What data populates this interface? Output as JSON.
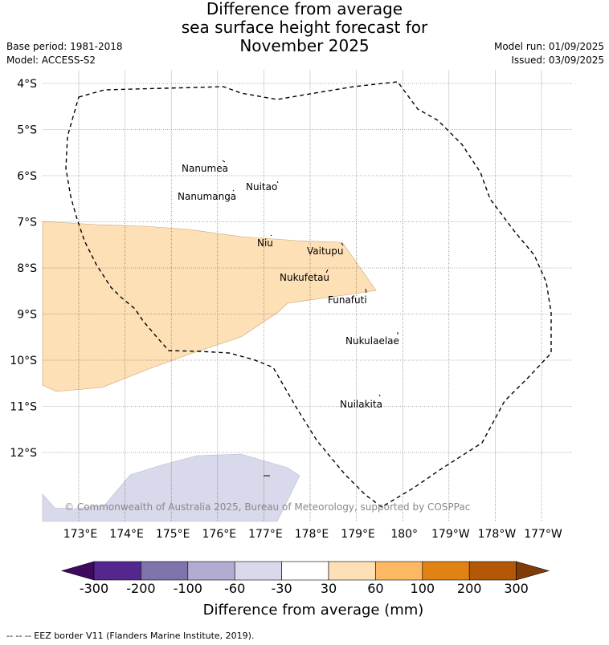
{
  "title": {
    "line1": "Difference from average",
    "line2": "sea surface height forecast for",
    "line3": "November 2025"
  },
  "meta": {
    "base_period": "Base period: 1981-2018",
    "model": "Model: ACCESS-S2",
    "model_run": "Model run: 01/09/2025",
    "issued": "Issued: 03/09/2025"
  },
  "map": {
    "lat_labels": [
      "4°S",
      "5°S",
      "6°S",
      "7°S",
      "8°S",
      "9°S",
      "10°S",
      "11°S",
      "12°S"
    ],
    "lon_labels": [
      "173°E",
      "174°E",
      "175°E",
      "176°E",
      "177°E",
      "178°E",
      "179°E",
      "180°",
      "179°W",
      "178°W",
      "177°W"
    ],
    "islands": [
      "Nanumea",
      "Nuitao",
      "Nanumanga",
      "Niu",
      "Vaitupu",
      "Nukufetau",
      "Funafuti",
      "Nukulaelae",
      "Nuilakita"
    ],
    "copyright": "© Commonwealth of Australia 2025, Bureau of Meteorology, supported by COSPPac",
    "anomaly_colors": {
      "positive_30_60": "#fde0b6",
      "negative_60_30": "#d8d9ea"
    },
    "eez_line_style": "dashed black"
  },
  "colorbar": {
    "title": "Difference from average (mm)",
    "ticks": [
      "-300",
      "-200",
      "-100",
      "-60",
      "-30",
      "30",
      "60",
      "100",
      "200",
      "300"
    ],
    "colors": [
      "#3f0a5e",
      "#54278f",
      "#8073ac",
      "#b2abd2",
      "#d8daeb",
      "#ffffff",
      "#fee0b6",
      "#fdb863",
      "#e08214",
      "#b35806",
      "#7f3b08"
    ]
  },
  "footer": "--  --  -- EEZ border V11 (Flanders Marine Institute, 2019)."
}
